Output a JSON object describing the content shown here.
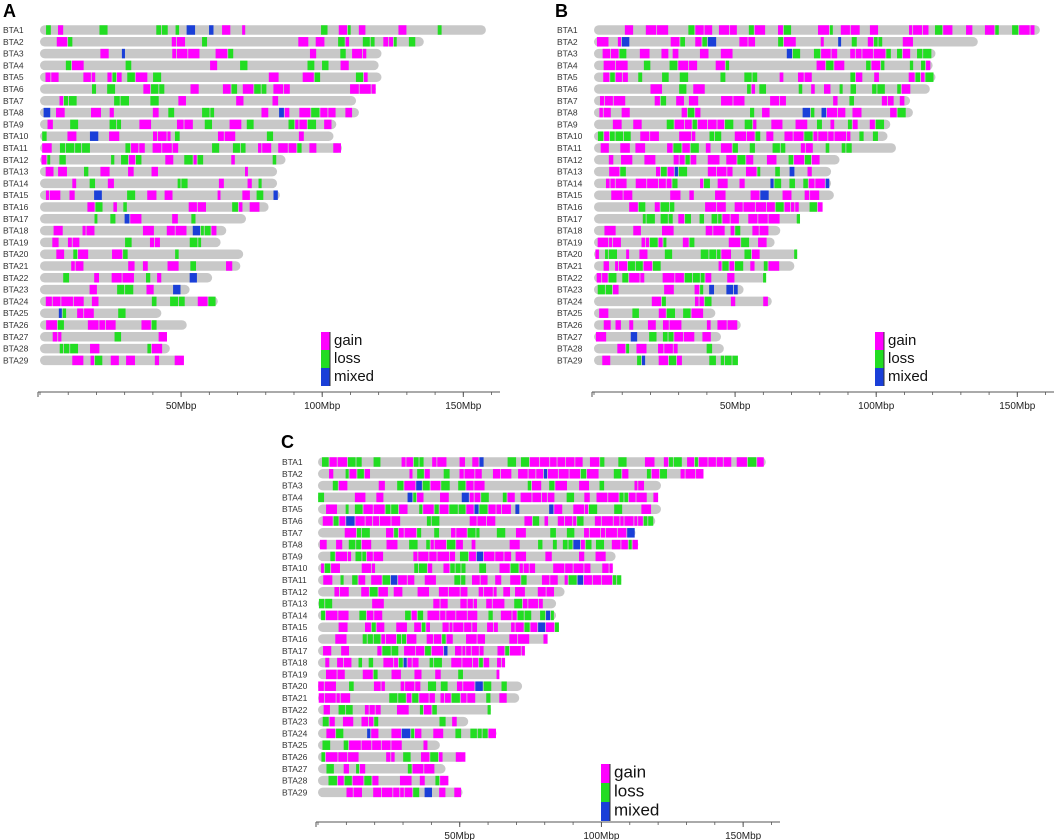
{
  "chart_data": [
    {
      "panel": "A",
      "type": "ideogram",
      "title": "",
      "xlabel": "",
      "ylabel": "",
      "xlim": [
        0,
        163
      ],
      "x_ticks": [
        {
          "value": 50,
          "label": "50Mbp"
        },
        {
          "value": 100,
          "label": "100Mbp"
        },
        {
          "value": 150,
          "label": "150Mbp"
        }
      ],
      "chromosomes": [
        "BTA1",
        "BTA2",
        "BTA3",
        "BTA4",
        "BTA5",
        "BTA6",
        "BTA7",
        "BTA8",
        "BTA9",
        "BTA10",
        "BTA11",
        "BTA12",
        "BTA13",
        "BTA14",
        "BTA15",
        "BTA16",
        "BTA17",
        "BTA18",
        "BTA19",
        "BTA20",
        "BTA21",
        "BTA22",
        "BTA23",
        "BTA24",
        "BTA25",
        "BTA26",
        "BTA27",
        "BTA28",
        "BTA29"
      ],
      "lengths_mbp": [
        158,
        136,
        121,
        120,
        121,
        119,
        112,
        113,
        105,
        104,
        107,
        87,
        84,
        84,
        85,
        81,
        73,
        66,
        64,
        72,
        71,
        61,
        53,
        63,
        43,
        52,
        45,
        46,
        51
      ],
      "density": 0.3,
      "legend": [
        "gain",
        "loss",
        "mixed"
      ],
      "legend_position": "bottom-right"
    },
    {
      "panel": "B",
      "type": "ideogram",
      "title": "",
      "xlabel": "",
      "ylabel": "",
      "xlim": [
        0,
        163
      ],
      "x_ticks": [
        {
          "value": 50,
          "label": "50Mbp"
        },
        {
          "value": 100,
          "label": "100Mbp"
        },
        {
          "value": 150,
          "label": "150Mbp"
        }
      ],
      "chromosomes": [
        "BTA1",
        "BTA2",
        "BTA3",
        "BTA4",
        "BTA5",
        "BTA6",
        "BTA7",
        "BTA8",
        "BTA9",
        "BTA10",
        "BTA11",
        "BTA12",
        "BTA13",
        "BTA14",
        "BTA15",
        "BTA16",
        "BTA17",
        "BTA18",
        "BTA19",
        "BTA20",
        "BTA21",
        "BTA22",
        "BTA23",
        "BTA24",
        "BTA25",
        "BTA26",
        "BTA27",
        "BTA28",
        "BTA29"
      ],
      "lengths_mbp": [
        158,
        136,
        121,
        120,
        121,
        119,
        112,
        113,
        105,
        104,
        107,
        87,
        84,
        84,
        85,
        81,
        73,
        66,
        64,
        72,
        71,
        61,
        53,
        63,
        43,
        52,
        45,
        46,
        51
      ],
      "density": 0.5,
      "legend": [
        "gain",
        "loss",
        "mixed"
      ],
      "legend_position": "bottom-right"
    },
    {
      "panel": "C",
      "type": "ideogram",
      "title": "",
      "xlabel": "",
      "ylabel": "",
      "xlim": [
        0,
        163
      ],
      "x_ticks": [
        {
          "value": 50,
          "label": "50Mbp"
        },
        {
          "value": 100,
          "label": "100Mbp"
        },
        {
          "value": 150,
          "label": "150Mbp"
        }
      ],
      "chromosomes": [
        "BTA1",
        "BTA2",
        "BTA3",
        "BTA4",
        "BTA5",
        "BTA6",
        "BTA7",
        "BTA8",
        "BTA9",
        "BTA10",
        "BTA11",
        "BTA12",
        "BTA13",
        "BTA14",
        "BTA15",
        "BTA16",
        "BTA17",
        "BTA18",
        "BTA19",
        "BTA20",
        "BTA21",
        "BTA22",
        "BTA23",
        "BTA24",
        "BTA25",
        "BTA26",
        "BTA27",
        "BTA28",
        "BTA29"
      ],
      "lengths_mbp": [
        158,
        136,
        121,
        120,
        121,
        119,
        112,
        113,
        105,
        104,
        107,
        87,
        84,
        84,
        85,
        81,
        73,
        66,
        64,
        72,
        71,
        61,
        53,
        63,
        43,
        52,
        45,
        46,
        51
      ],
      "density": 0.65,
      "legend": [
        "gain",
        "loss",
        "mixed"
      ],
      "legend_position": "bottom-right"
    }
  ],
  "colors": {
    "gain": "#ff00ff",
    "loss": "#22dd22",
    "mixed": "#1a3fd8",
    "chromosome": "#c8c8c8",
    "axis": "#555555"
  }
}
